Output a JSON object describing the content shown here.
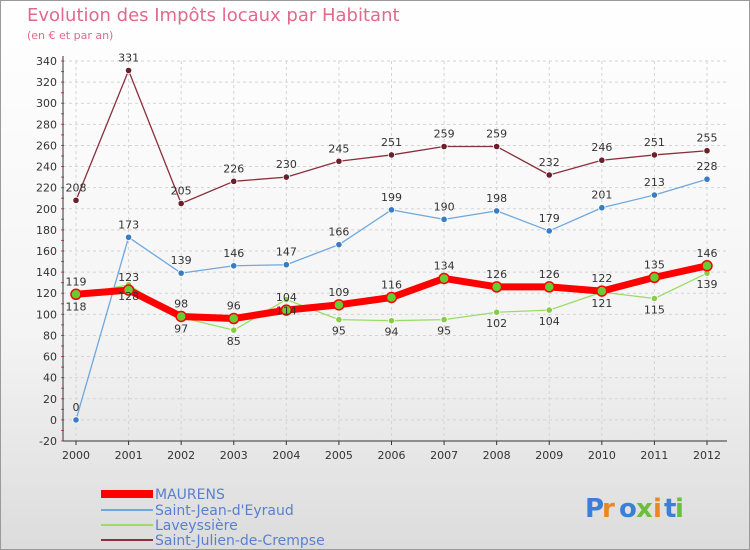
{
  "header": {
    "title": "Evolution des Impôts locaux par Habitant",
    "subtitle": "(en € et par an)"
  },
  "logo": {
    "text": "Proxiti"
  },
  "chart_data": {
    "type": "line",
    "title": "Evolution des Impôts locaux par Habitant",
    "subtitle": "(en € et par an)",
    "x": [
      "2000",
      "2001",
      "2002",
      "2003",
      "2004",
      "2005",
      "2006",
      "2007",
      "2008",
      "2009",
      "2010",
      "2011",
      "2012"
    ],
    "ylim": [
      -20,
      340
    ],
    "yticks": [
      -20,
      0,
      20,
      40,
      60,
      80,
      100,
      120,
      140,
      160,
      180,
      200,
      220,
      240,
      260,
      280,
      300,
      320,
      340
    ],
    "grid": true,
    "legend_position": "bottom-left",
    "series": [
      {
        "name": "MAURENS",
        "color": "#ff0000",
        "values": [
          119,
          123,
          98,
          96,
          104,
          109,
          116,
          134,
          126,
          126,
          122,
          135,
          146
        ],
        "labels": [
          "119",
          "123",
          "98",
          "96",
          "104",
          "109",
          "116",
          "134",
          "126",
          "126",
          "122",
          "135",
          "146"
        ]
      },
      {
        "name": "Saint-Jean-d'Eyraud",
        "color": "#6fa8dc",
        "values": [
          0,
          173,
          139,
          146,
          147,
          166,
          199,
          190,
          198,
          179,
          201,
          213,
          228
        ],
        "labels": [
          "0",
          "173",
          "139",
          "146",
          "147",
          "166",
          "199",
          "190",
          "198",
          "179",
          "201",
          "213",
          "228"
        ]
      },
      {
        "name": "Laveyssière",
        "color": "#99dd66",
        "values": [
          118,
          128,
          97,
          85,
          114,
          95,
          94,
          95,
          102,
          104,
          121,
          115,
          139
        ],
        "labels": [
          "118",
          "128",
          "97",
          "85",
          "114",
          "95",
          "94",
          "95",
          "102",
          "104",
          "121",
          "115",
          "139"
        ]
      },
      {
        "name": "Saint-Julien-de-Crempse",
        "color": "#8b2f3a",
        "values": [
          208,
          331,
          205,
          226,
          230,
          245,
          251,
          259,
          259,
          232,
          246,
          251,
          255
        ],
        "labels": [
          "208",
          "331",
          "205",
          "226",
          "230",
          "245",
          "251",
          "259",
          "259",
          "232",
          "246",
          "251",
          "255"
        ]
      }
    ]
  }
}
